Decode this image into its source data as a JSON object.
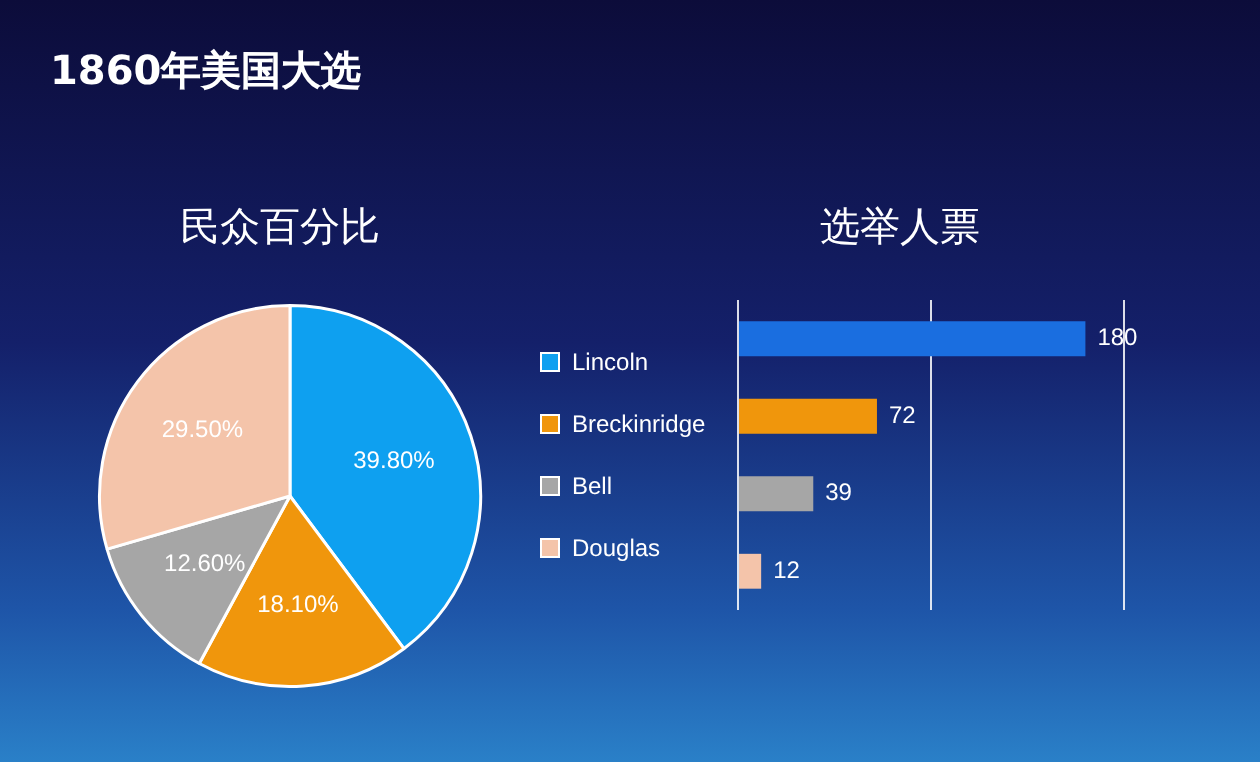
{
  "chart_data": [
    {
      "type": "pie",
      "title": "1860年美国大选",
      "subtitle": "民众百分比",
      "categories": [
        "Lincoln",
        "Breckinridge",
        "Bell",
        "Douglas"
      ],
      "values": [
        39.8,
        18.1,
        12.6,
        29.5
      ],
      "colors": [
        "#0ea0f0",
        "#f0960c",
        "#a6a6a6",
        "#f4c4aa"
      ],
      "value_labels": [
        "39.80%",
        "18.10%",
        "12.60%",
        "29.50%"
      ],
      "legend": "right"
    },
    {
      "type": "bar",
      "orientation": "horizontal",
      "title": "选举人票",
      "categories": [
        null,
        null,
        null,
        null
      ],
      "values": [
        180,
        72,
        39,
        12
      ],
      "colors": [
        "#1a6ee0",
        "#f0960c",
        "#a6a6a6",
        "#f4c4aa"
      ],
      "xlim": [
        0,
        200
      ],
      "xticks": [
        {
          "value": 0,
          "label": null
        },
        {
          "value": 100,
          "label": null
        },
        {
          "value": 200,
          "label": null
        }
      ],
      "grid": "x",
      "tick_labels": false,
      "data_labels": true
    }
  ]
}
